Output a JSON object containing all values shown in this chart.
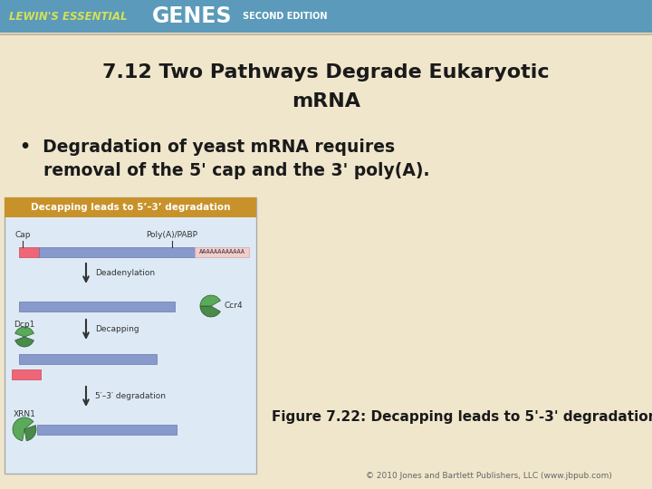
{
  "bg_color": "#f0e6cc",
  "header_color": "#5b9aba",
  "header_text1": "LEWIN'S ESSENTIAL",
  "header_text2": "GENES",
  "header_text3": "SECOND EDITION",
  "title_line1": "7.12 Two Pathways Degrade Eukaryotic",
  "title_line2": "mRNA",
  "bullet_line1": "•  Degradation of yeast mRNA requires",
  "bullet_line2": "    removal of the 5' cap and the 3' poly(A).",
  "figure_caption": "Figure 7.22: Decapping leads to 5'-3' degradation.",
  "copyright": "© 2010 Jones and Bartlett Publishers, LLC (www.jbpub.com)",
  "fig_box_color": "#ddeaf5",
  "fig_box_border": "#aaaaaa",
  "fig_title_bg": "#c8922a",
  "fig_title_text": "Decapping leads to 5’–3’ degradation",
  "header_yellow": "#d4e157",
  "text_color": "#1a1a1a",
  "caption_color": "#1a1a1a",
  "sep_line_color": "#c8b89a",
  "mrna_blue": "#8899cc",
  "mrna_blue_edge": "#6677aa",
  "cap_red": "#ee6677",
  "cap_red_edge": "#cc4455",
  "poly_a_bg": "#f5cccc",
  "poly_a_text": "#333333",
  "enzyme_green": "#4a8a4a",
  "enzyme_green2": "#5aaa5a",
  "arrow_color": "#333333",
  "label_color": "#333333"
}
